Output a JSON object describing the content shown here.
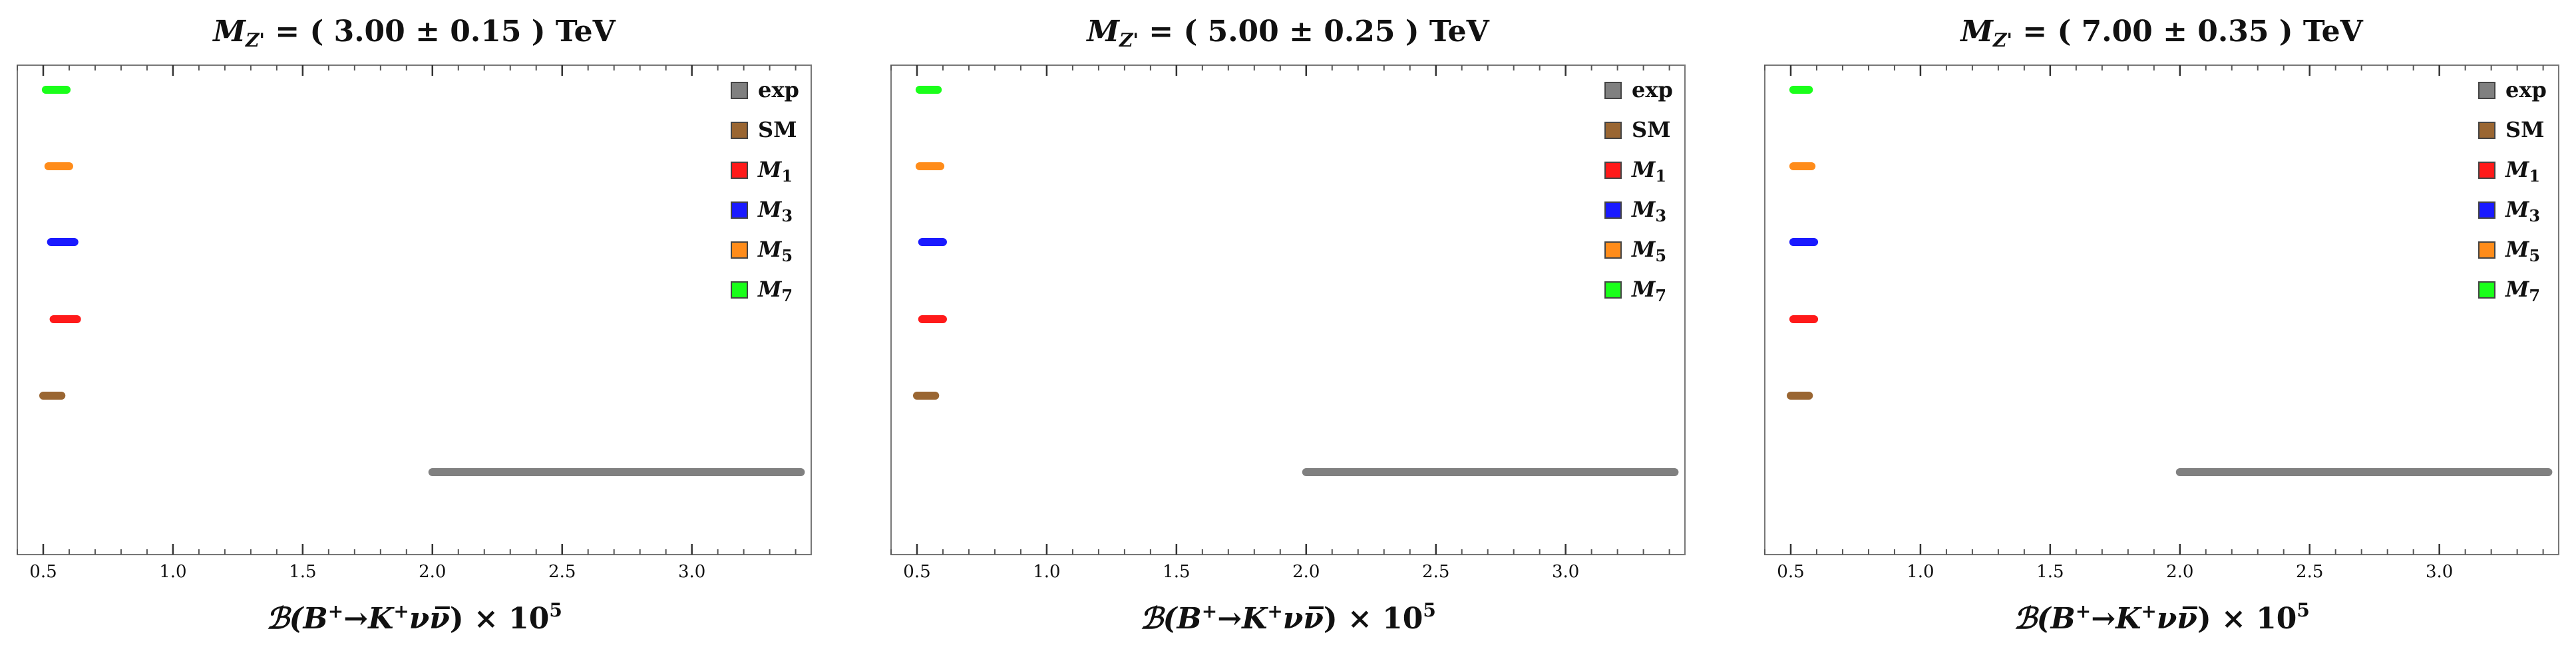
{
  "chart_data": [
    {
      "type": "range",
      "title": {
        "var": "M",
        "var_sub": "Z'",
        "rest": " = ( 3.00 ± 0.15 ) TeV"
      },
      "xlabel": {
        "pre": "ℬ(",
        "b": "B",
        "b_sup": "+",
        "arrow": "→",
        "k": "K",
        "k_sup": "+",
        "nu": "νν̅",
        "post": ") × 10",
        "exp": "5"
      },
      "xlim": [
        0.4,
        3.46
      ],
      "ticks": [
        "0.5",
        "1.0",
        "1.5",
        "2.0",
        "2.5",
        "3.0"
      ],
      "tick_values": [
        0.5,
        1.0,
        1.5,
        2.0,
        2.5,
        3.0
      ],
      "series": [
        {
          "legend": "exp",
          "italic": false,
          "color": "#808080",
          "range": [
            2.0,
            3.42
          ]
        },
        {
          "legend": "SM",
          "italic": false,
          "color": "#9a6632",
          "range": [
            0.5,
            0.57
          ]
        },
        {
          "legend": "M",
          "sub": "1",
          "italic": true,
          "color": "#ff1a1a",
          "range": [
            0.54,
            0.63
          ]
        },
        {
          "legend": "M",
          "sub": "3",
          "italic": true,
          "color": "#1a1aff",
          "range": [
            0.53,
            0.62
          ]
        },
        {
          "legend": "M",
          "sub": "5",
          "italic": true,
          "color": "#ff8c1a",
          "range": [
            0.52,
            0.6
          ]
        },
        {
          "legend": "M",
          "sub": "7",
          "italic": true,
          "color": "#1aff1a",
          "range": [
            0.51,
            0.59
          ]
        }
      ]
    },
    {
      "type": "range",
      "title": {
        "var": "M",
        "var_sub": "Z'",
        "rest": " = ( 5.00 ± 0.25 ) TeV"
      },
      "xlabel": {
        "pre": "ℬ(",
        "b": "B",
        "b_sup": "+",
        "arrow": "→",
        "k": "K",
        "k_sup": "+",
        "nu": "νν̅",
        "post": ") × 10",
        "exp": "5"
      },
      "xlim": [
        0.4,
        3.46
      ],
      "ticks": [
        "0.5",
        "1.0",
        "1.5",
        "2.0",
        "2.5",
        "3.0"
      ],
      "tick_values": [
        0.5,
        1.0,
        1.5,
        2.0,
        2.5,
        3.0
      ],
      "series": [
        {
          "legend": "exp",
          "italic": false,
          "color": "#808080",
          "range": [
            2.0,
            3.42
          ]
        },
        {
          "legend": "SM",
          "italic": false,
          "color": "#9a6632",
          "range": [
            0.5,
            0.57
          ]
        },
        {
          "legend": "M",
          "sub": "1",
          "italic": true,
          "color": "#ff1a1a",
          "range": [
            0.52,
            0.6
          ]
        },
        {
          "legend": "M",
          "sub": "3",
          "italic": true,
          "color": "#1a1aff",
          "range": [
            0.52,
            0.6
          ]
        },
        {
          "legend": "M",
          "sub": "5",
          "italic": true,
          "color": "#ff8c1a",
          "range": [
            0.51,
            0.59
          ]
        },
        {
          "legend": "M",
          "sub": "7",
          "italic": true,
          "color": "#1aff1a",
          "range": [
            0.51,
            0.58
          ]
        }
      ]
    },
    {
      "type": "range",
      "title": {
        "var": "M",
        "var_sub": "Z'",
        "rest": " = ( 7.00 ± 0.35 ) TeV"
      },
      "xlabel": {
        "pre": "ℬ(",
        "b": "B",
        "b_sup": "+",
        "arrow": "→",
        "k": "K",
        "k_sup": "+",
        "nu": "νν̅",
        "post": ") × 10",
        "exp": "5"
      },
      "xlim": [
        0.4,
        3.46
      ],
      "ticks": [
        "0.5",
        "1.0",
        "1.5",
        "2.0",
        "2.5",
        "3.0"
      ],
      "tick_values": [
        0.5,
        1.0,
        1.5,
        2.0,
        2.5,
        3.0
      ],
      "series": [
        {
          "legend": "exp",
          "italic": false,
          "color": "#808080",
          "range": [
            2.0,
            3.42
          ]
        },
        {
          "legend": "SM",
          "italic": false,
          "color": "#9a6632",
          "range": [
            0.5,
            0.57
          ]
        },
        {
          "legend": "M",
          "sub": "1",
          "italic": true,
          "color": "#ff1a1a",
          "range": [
            0.51,
            0.59
          ]
        },
        {
          "legend": "M",
          "sub": "3",
          "italic": true,
          "color": "#1a1aff",
          "range": [
            0.51,
            0.59
          ]
        },
        {
          "legend": "M",
          "sub": "5",
          "italic": true,
          "color": "#ff8c1a",
          "range": [
            0.51,
            0.58
          ]
        },
        {
          "legend": "M",
          "sub": "7",
          "italic": true,
          "color": "#1aff1a",
          "range": [
            0.51,
            0.57
          ]
        }
      ]
    }
  ]
}
